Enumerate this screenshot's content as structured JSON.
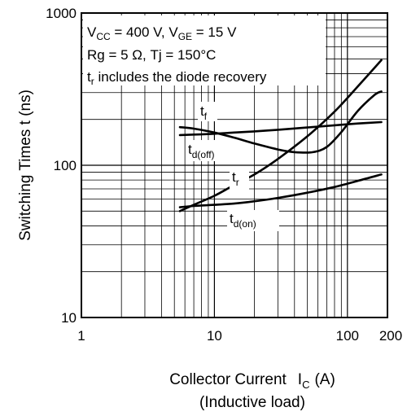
{
  "chart_data": {
    "type": "line",
    "xscale": "log",
    "yscale": "log",
    "xlim": [
      1,
      200
    ],
    "ylim": [
      10,
      1000
    ],
    "grid": true,
    "x_ticks": [
      "1",
      "10",
      "100",
      "200"
    ],
    "y_ticks": [
      "1000",
      "100",
      "10"
    ],
    "xlabel": {
      "main": "Collector Current",
      "symbol": "I",
      "symbol_sub": "C",
      "unit": "(A)"
    },
    "xlabel_line2": "(Inductive load)",
    "ylabel": "Switching Times  t  (ns)",
    "annotations": {
      "line1": {
        "a": "V",
        "a_sub": "CC",
        "b": " = 400 V, V",
        "b_sub": "GE",
        "c": " = 15 V"
      },
      "line2": "Rg = 5 Ω, Tj = 150°C",
      "line3": {
        "a": "t",
        "a_sub": "r",
        "b": " includes the diode recovery"
      }
    },
    "series": [
      {
        "name": {
          "base": "t",
          "sub": "f"
        },
        "x": [
          5.5,
          7,
          10,
          14,
          20,
          30,
          50,
          80,
          120,
          180
        ],
        "y": [
          158,
          159,
          161,
          164,
          167,
          171,
          177,
          183,
          188,
          192
        ]
      },
      {
        "name": {
          "base": "t",
          "sub": "d(off)"
        },
        "x": [
          5.5,
          7,
          10,
          14,
          20,
          30,
          40,
          55,
          70,
          90,
          120,
          160,
          180
        ],
        "y": [
          178,
          174,
          164,
          152,
          139,
          127,
          122,
          122,
          132,
          165,
          228,
          290,
          305
        ]
      },
      {
        "name": {
          "base": "t",
          "sub": "r"
        },
        "x": [
          5.5,
          7,
          10,
          14,
          20,
          30,
          50,
          80,
          120,
          180
        ],
        "y": [
          50,
          55,
          63,
          74,
          87,
          110,
          155,
          225,
          330,
          490
        ]
      },
      {
        "name": {
          "base": "t",
          "sub": "d(on)"
        },
        "x": [
          5.5,
          7,
          10,
          14,
          20,
          30,
          50,
          80,
          120,
          180
        ],
        "y": [
          53,
          54,
          55,
          56,
          58,
          61,
          66,
          72,
          79,
          87
        ]
      }
    ],
    "series_label_values": [
      {
        "x": 14.3,
        "y": 205
      },
      {
        "x": 12.8,
        "y": 132
      },
      {
        "x": 20.5,
        "y": 87
      },
      {
        "x": 26,
        "y": 49
      }
    ]
  }
}
